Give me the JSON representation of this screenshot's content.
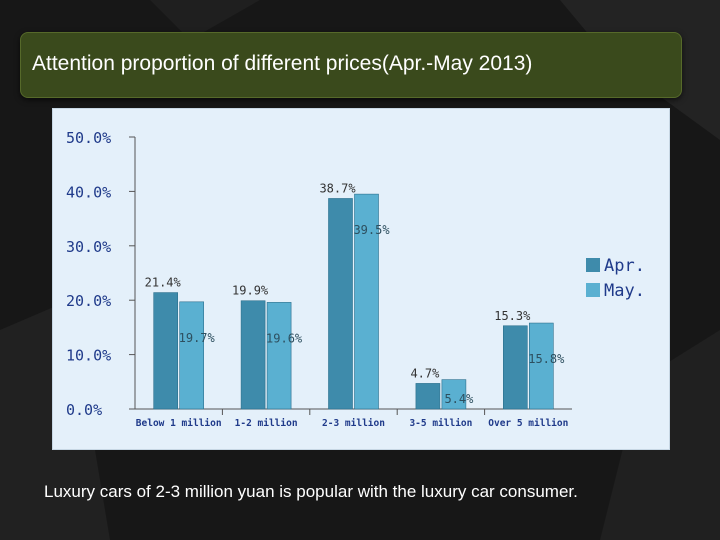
{
  "slide": {
    "title": "Attention proportion of different prices(Apr.-May 2013)",
    "caption": "Luxury cars of 2-3 million yuan is popular with the luxury car consumer."
  },
  "colors": {
    "background": "#171717",
    "title_bg": "#3a4a1c",
    "chart_bg": "#e4f0fa",
    "axis": "#555555",
    "tick_text": "#1f3a8a",
    "label_text": "#333333",
    "apr": "#3e8bab",
    "may": "#5ab0d1"
  },
  "chart_data": {
    "type": "bar",
    "title": "",
    "xlabel": "",
    "ylabel": "",
    "categories": [
      "Below 1 million",
      "1-2 million",
      "2-3 million",
      "3-5 million",
      "Over 5 million"
    ],
    "series": [
      {
        "name": "Apr.",
        "values": [
          21.4,
          19.9,
          38.7,
          4.7,
          15.3
        ],
        "labels": [
          "21.4%",
          "19.9%",
          "38.7%",
          "4.7%",
          "15.3%"
        ]
      },
      {
        "name": "May.",
        "values": [
          19.7,
          19.6,
          39.5,
          5.4,
          15.8
        ],
        "labels": [
          "19.7%",
          "19.6%",
          "39.5%",
          "5.4%",
          "15.8%"
        ]
      }
    ],
    "ylim": [
      0,
      50
    ],
    "yticks": [
      0,
      10,
      20,
      30,
      40,
      50
    ],
    "ytick_labels": [
      "0.0%",
      "10.0%",
      "20.0%",
      "30.0%",
      "40.0%",
      "50.0%"
    ],
    "legend_position": "right",
    "grid": false
  }
}
